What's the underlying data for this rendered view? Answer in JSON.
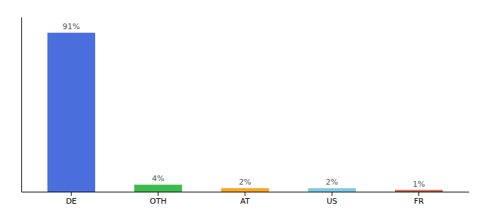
{
  "chart_data": {
    "type": "bar",
    "categories": [
      "DE",
      "OTH",
      "AT",
      "US",
      "FR"
    ],
    "values": [
      91,
      4,
      2,
      2,
      1
    ],
    "value_labels": [
      "91%",
      "4%",
      "2%",
      "2%",
      "1%"
    ],
    "colors": [
      "#4a6fdc",
      "#3dba4e",
      "#f5a623",
      "#7ec8e3",
      "#c0604a"
    ],
    "ylim": [
      0,
      100
    ],
    "data_labels": true,
    "tick_labels": "x"
  }
}
